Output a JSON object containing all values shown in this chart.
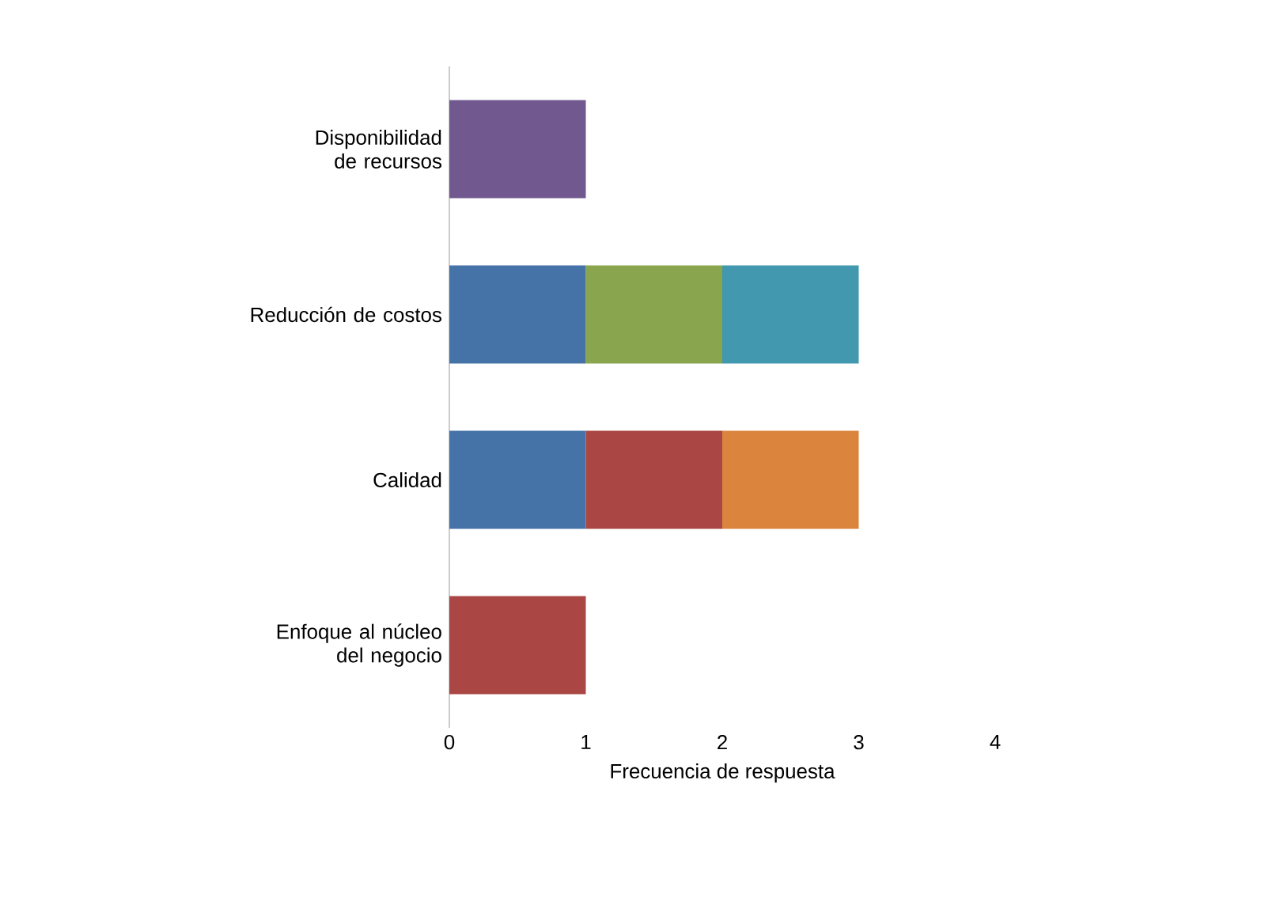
{
  "chart_data": {
    "type": "bar",
    "orientation": "horizontal",
    "stacked": true,
    "xlabel": "Frecuencia de respuesta",
    "categories": [
      "Disponibilidad de recursos",
      "Reducción de costos",
      "Calidad",
      "Enfoque al núcleo del negocio"
    ],
    "series": [
      {
        "color": "#4572a7",
        "values": [
          0,
          1,
          1,
          0
        ]
      },
      {
        "color": "#aa4643",
        "values": [
          0,
          0,
          1,
          1
        ]
      },
      {
        "color": "#89a54e",
        "values": [
          0,
          1,
          0,
          0
        ]
      },
      {
        "color": "#71588f",
        "values": [
          1,
          0,
          0,
          0
        ]
      },
      {
        "color": "#4198af",
        "values": [
          0,
          1,
          0,
          0
        ]
      },
      {
        "color": "#db843d",
        "values": [
          0,
          0,
          1,
          0
        ]
      }
    ],
    "xlim": [
      0,
      4
    ],
    "xticks": [
      0,
      1,
      2,
      3,
      4
    ]
  }
}
